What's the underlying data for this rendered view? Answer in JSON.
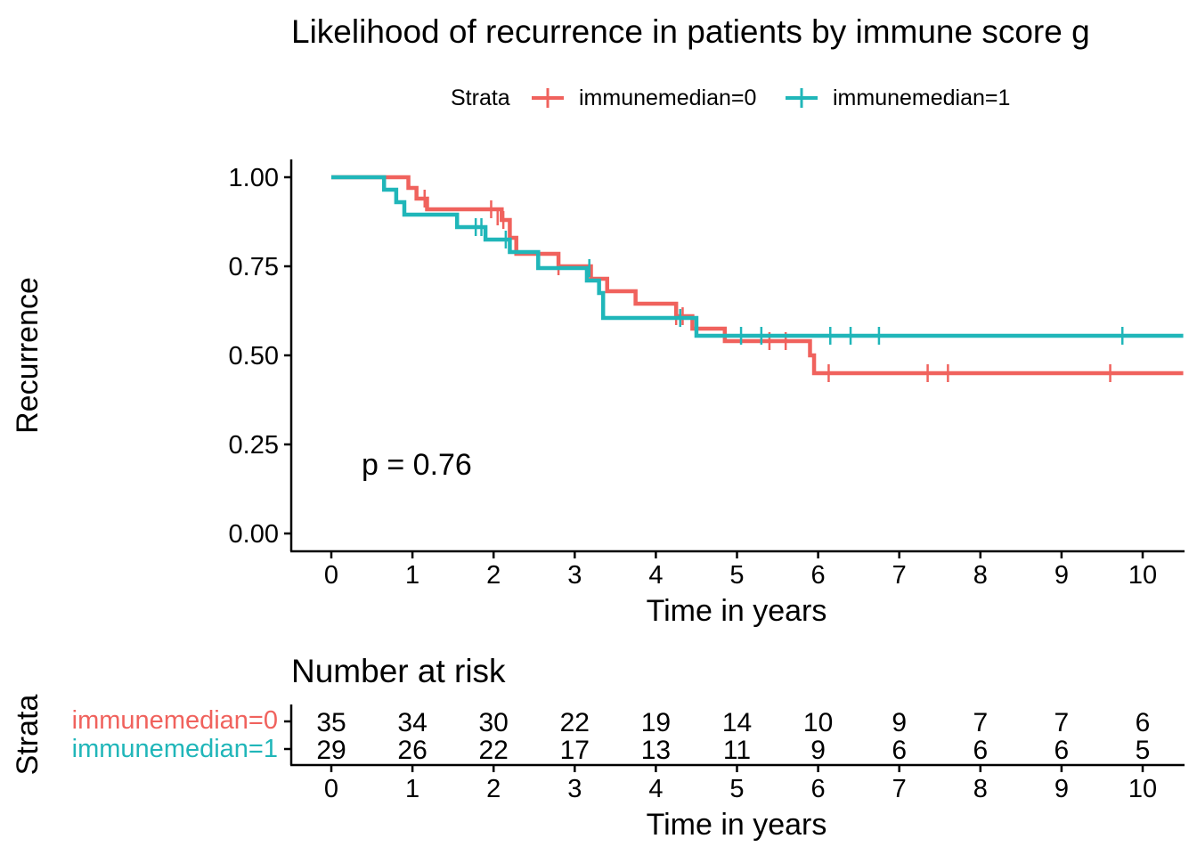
{
  "chart_data": [
    {
      "type": "line",
      "subtype": "kaplan-meier step",
      "title": "Likelihood of recurrence in patients by immune score g",
      "xlabel": "Time in years",
      "ylabel": "Recurrence",
      "xlim": [
        0,
        10.5
      ],
      "ylim": [
        0,
        1
      ],
      "xticks": [
        "0",
        "1",
        "2",
        "3",
        "4",
        "5",
        "6",
        "7",
        "8",
        "9",
        "10"
      ],
      "yticks": [
        "0.00",
        "0.25",
        "0.50",
        "0.75",
        "1.00"
      ],
      "legend": {
        "title": "Strata",
        "position": "top"
      },
      "annotation": "p = 0.76",
      "grid": false,
      "series": [
        {
          "name": "immunemedian=0",
          "color": "#F0625D",
          "steps": [
            [
              0,
              1.0
            ],
            [
              0.95,
              0.97
            ],
            [
              1.05,
              0.94
            ],
            [
              1.18,
              0.91
            ],
            [
              2.1,
              0.88
            ],
            [
              2.2,
              0.83
            ],
            [
              2.28,
              0.785
            ],
            [
              2.8,
              0.75
            ],
            [
              3.2,
              0.715
            ],
            [
              3.4,
              0.68
            ],
            [
              3.75,
              0.645
            ],
            [
              4.25,
              0.61
            ],
            [
              4.45,
              0.575
            ],
            [
              4.85,
              0.54
            ],
            [
              5.9,
              0.5
            ],
            [
              5.95,
              0.45
            ],
            [
              10.5,
              0.45
            ]
          ],
          "censors": [
            [
              1.15,
              0.94
            ],
            [
              1.97,
              0.91
            ],
            [
              2.05,
              0.89
            ],
            [
              2.12,
              0.88
            ],
            [
              2.8,
              0.75
            ],
            [
              4.25,
              0.61
            ],
            [
              4.33,
              0.61
            ],
            [
              5.4,
              0.54
            ],
            [
              5.6,
              0.54
            ],
            [
              6.13,
              0.45
            ],
            [
              7.35,
              0.45
            ],
            [
              7.6,
              0.45
            ],
            [
              9.6,
              0.45
            ]
          ]
        },
        {
          "name": "immunemedian=1",
          "color": "#20B6B9",
          "steps": [
            [
              0,
              1.0
            ],
            [
              0.65,
              0.965
            ],
            [
              0.8,
              0.93
            ],
            [
              0.9,
              0.895
            ],
            [
              1.55,
              0.86
            ],
            [
              1.9,
              0.825
            ],
            [
              2.2,
              0.79
            ],
            [
              2.55,
              0.745
            ],
            [
              3.15,
              0.71
            ],
            [
              3.3,
              0.675
            ],
            [
              3.35,
              0.605
            ],
            [
              4.5,
              0.555
            ],
            [
              10.5,
              0.555
            ]
          ],
          "censors": [
            [
              1.78,
              0.86
            ],
            [
              1.85,
              0.86
            ],
            [
              2.15,
              0.825
            ],
            [
              3.18,
              0.745
            ],
            [
              4.3,
              0.605
            ],
            [
              5.05,
              0.555
            ],
            [
              5.3,
              0.555
            ],
            [
              6.15,
              0.555
            ],
            [
              6.4,
              0.555
            ],
            [
              6.75,
              0.555
            ],
            [
              9.75,
              0.555
            ]
          ]
        }
      ]
    },
    {
      "type": "table",
      "title": "Number at risk",
      "xlabel": "Time in years",
      "ylabel": "Strata",
      "xticks": [
        "0",
        "1",
        "2",
        "3",
        "4",
        "5",
        "6",
        "7",
        "8",
        "9",
        "10"
      ],
      "rows": [
        {
          "name": "immunemedian=0",
          "color": "#F0625D",
          "values": [
            "35",
            "34",
            "30",
            "22",
            "19",
            "14",
            "10",
            "9",
            "7",
            "7",
            "6"
          ]
        },
        {
          "name": "immunemedian=1",
          "color": "#20B6B9",
          "values": [
            "29",
            "26",
            "22",
            "17",
            "13",
            "11",
            "9",
            "6",
            "6",
            "6",
            "5"
          ]
        }
      ]
    }
  ]
}
